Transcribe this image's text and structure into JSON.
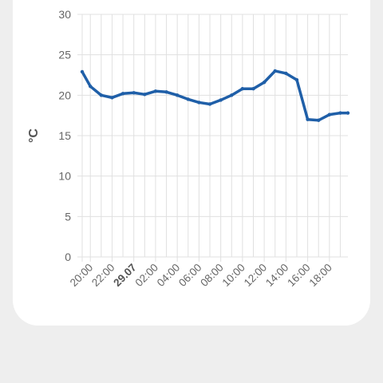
{
  "colors": {
    "background": "#eeeeee",
    "card": "#ffffff",
    "grid": "#e0e0e0",
    "line": "#1f5fa8",
    "tick_text": "#666666"
  },
  "chart_data": {
    "type": "line",
    "ylabel": "°C",
    "ylim": [
      0,
      30
    ],
    "yticks": [
      0,
      5,
      10,
      15,
      20,
      25,
      30
    ],
    "x_ticks": [
      {
        "label": "20:00",
        "hour": 20,
        "bold": false
      },
      {
        "label": "22:00",
        "hour": 22,
        "bold": false
      },
      {
        "label": "29.07",
        "hour": 24,
        "bold": true
      },
      {
        "label": "02:00",
        "hour": 26,
        "bold": false
      },
      {
        "label": "04:00",
        "hour": 28,
        "bold": false
      },
      {
        "label": "06:00",
        "hour": 30,
        "bold": false
      },
      {
        "label": "08:00",
        "hour": 32,
        "bold": false
      },
      {
        "label": "10:00",
        "hour": 34,
        "bold": false
      },
      {
        "label": "12:00",
        "hour": 36,
        "bold": false
      },
      {
        "label": "14:00",
        "hour": 38,
        "bold": false
      },
      {
        "label": "16:00",
        "hour": 40,
        "bold": false
      },
      {
        "label": "18:00",
        "hour": 42,
        "bold": false
      }
    ],
    "grid": true,
    "series": [
      {
        "x": [
          19.25,
          20.0,
          21.0,
          22.0,
          23.0,
          24.0,
          25.0,
          26.0,
          27.0,
          28.0,
          29.0,
          30.0,
          31.0,
          32.0,
          33.0,
          34.0,
          35.0,
          36.0,
          37.0,
          38.0,
          39.0,
          40.0,
          41.0,
          42.0,
          43.0,
          43.7
        ],
        "y": [
          22.9,
          21.1,
          20.0,
          19.7,
          20.2,
          20.3,
          20.1,
          20.5,
          20.4,
          20.0,
          19.5,
          19.1,
          18.9,
          19.4,
          20.0,
          20.8,
          20.8,
          21.6,
          23.0,
          22.7,
          21.9,
          17.0,
          16.9,
          17.6,
          17.8,
          17.8
        ]
      }
    ]
  }
}
